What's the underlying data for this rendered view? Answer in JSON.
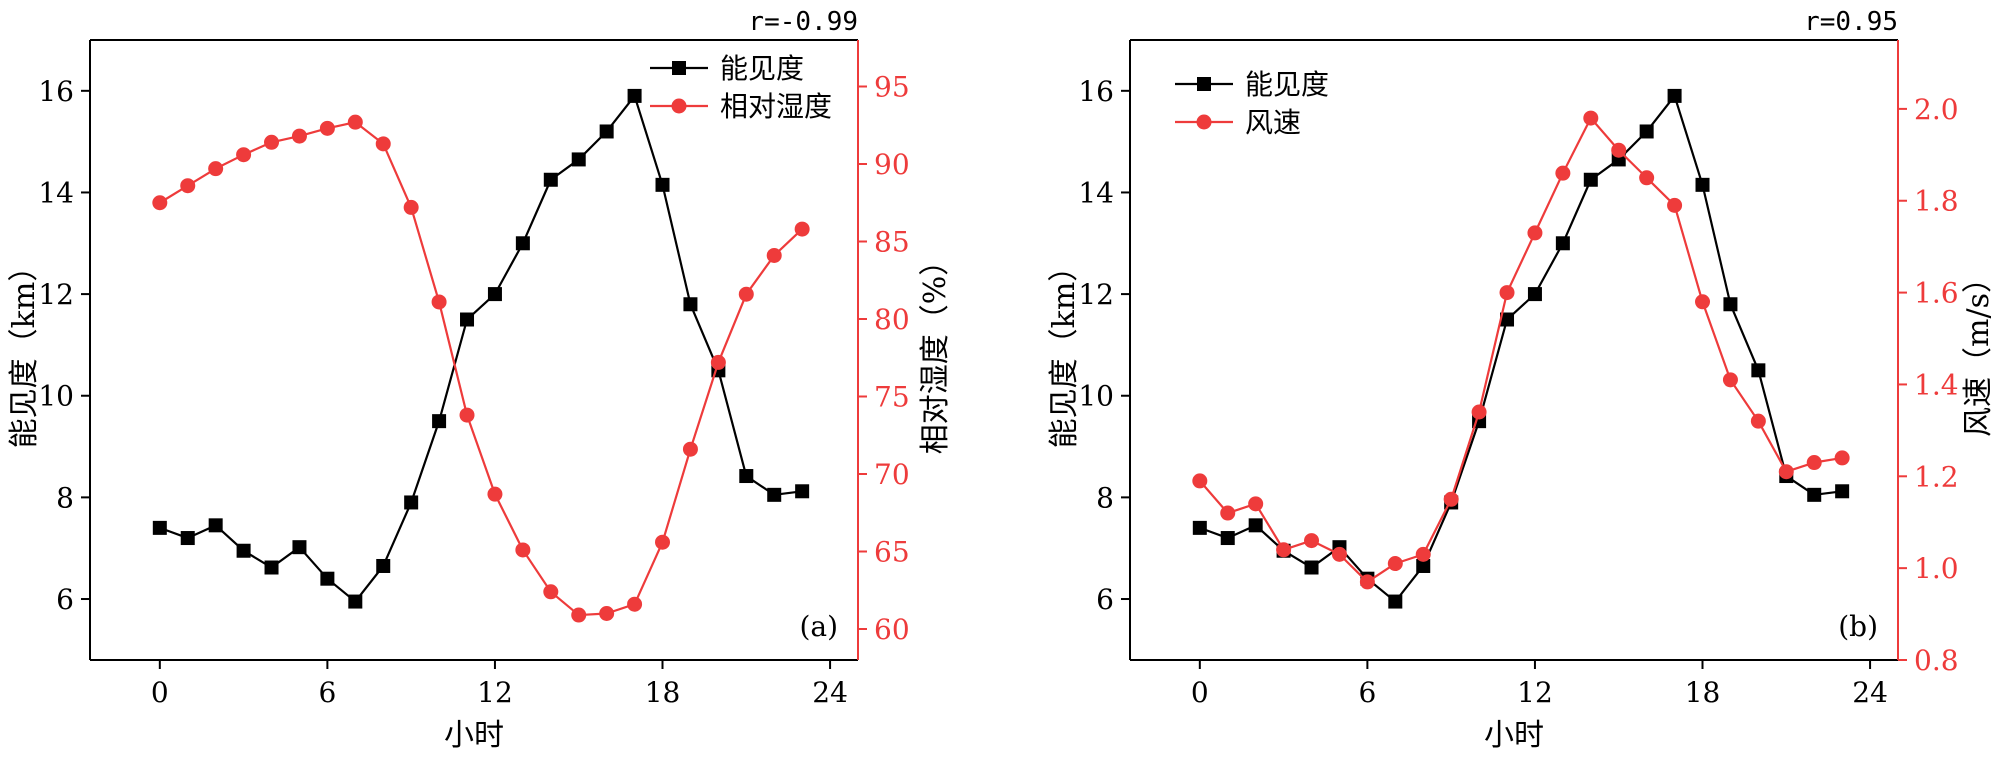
{
  "colors": {
    "visibility": "#000000",
    "secondary": "#ee3b3b",
    "axis": "#000000"
  },
  "chart_data": [
    {
      "type": "line",
      "panel_label": "(a)",
      "correlation": "r=-0.99",
      "xlabel": "小时",
      "ylabel_left": "能见度（km）",
      "ylabel_right": "相对湿度（%）",
      "xlim": [
        -2.5,
        25
      ],
      "xticks": [
        0,
        6,
        12,
        18,
        24
      ],
      "xtick_labels": [
        "0",
        "6",
        "12",
        "18",
        "24"
      ],
      "ylim_left": [
        4.8,
        17
      ],
      "yticks_left": [
        6,
        8,
        10,
        12,
        14,
        16
      ],
      "ytick_labels_left": [
        "6",
        "8",
        "10",
        "12",
        "14",
        "16"
      ],
      "ylim_right": [
        58,
        98
      ],
      "yticks_right": [
        60,
        65,
        70,
        75,
        80,
        85,
        90,
        95
      ],
      "ytick_labels_right": [
        "60",
        "65",
        "70",
        "75",
        "80",
        "85",
        "90",
        "95"
      ],
      "legend_position": "top-right",
      "x": [
        0,
        1,
        2,
        3,
        4,
        5,
        6,
        7,
        8,
        9,
        10,
        11,
        12,
        13,
        14,
        15,
        16,
        17,
        18,
        19,
        20,
        21,
        22,
        23
      ],
      "series": [
        {
          "name": "能见度",
          "axis": "left",
          "marker": "square",
          "color": "#000000",
          "values": [
            7.4,
            7.2,
            7.45,
            6.95,
            6.62,
            7.02,
            6.4,
            5.95,
            6.65,
            7.9,
            9.5,
            11.5,
            12.0,
            13.0,
            14.25,
            14.65,
            15.2,
            15.9,
            14.15,
            11.8,
            10.5,
            8.42,
            8.05,
            8.12
          ]
        },
        {
          "name": "相对湿度",
          "axis": "right",
          "marker": "circle",
          "color": "#ee3b3b",
          "values": [
            87.5,
            88.6,
            89.7,
            90.6,
            91.4,
            91.8,
            92.3,
            92.7,
            91.3,
            87.2,
            81.1,
            73.8,
            68.7,
            65.1,
            62.4,
            60.9,
            61.0,
            61.6,
            65.6,
            71.6,
            77.2,
            81.6,
            84.1,
            85.8
          ]
        }
      ]
    },
    {
      "type": "line",
      "panel_label": "(b)",
      "correlation": "r=0.95",
      "xlabel": "小时",
      "ylabel_left": "能见度（km）",
      "ylabel_right": "风速（m/s）",
      "xlim": [
        -2.5,
        25
      ],
      "xticks": [
        0,
        6,
        12,
        18,
        24
      ],
      "xtick_labels": [
        "0",
        "6",
        "12",
        "18",
        "24"
      ],
      "ylim_left": [
        4.8,
        17
      ],
      "yticks_left": [
        6,
        8,
        10,
        12,
        14,
        16
      ],
      "ytick_labels_left": [
        "6",
        "8",
        "10",
        "12",
        "14",
        "16"
      ],
      "ylim_right": [
        0.8,
        2.15
      ],
      "yticks_right": [
        0.8,
        1.0,
        1.2,
        1.4,
        1.6,
        1.8,
        2.0
      ],
      "ytick_labels_right": [
        "0.8",
        "1.0",
        "1.2",
        "1.4",
        "1.6",
        "1.8",
        "2.0"
      ],
      "legend_position": "top-left",
      "x": [
        0,
        1,
        2,
        3,
        4,
        5,
        6,
        7,
        8,
        9,
        10,
        11,
        12,
        13,
        14,
        15,
        16,
        17,
        18,
        19,
        20,
        21,
        22,
        23
      ],
      "series": [
        {
          "name": "能见度",
          "axis": "left",
          "marker": "square",
          "color": "#000000",
          "values": [
            7.4,
            7.2,
            7.45,
            6.95,
            6.62,
            7.02,
            6.4,
            5.95,
            6.65,
            7.9,
            9.5,
            11.5,
            12.0,
            13.0,
            14.25,
            14.65,
            15.2,
            15.9,
            14.15,
            11.8,
            10.5,
            8.42,
            8.05,
            8.12
          ]
        },
        {
          "name": "风速",
          "axis": "right",
          "marker": "circle",
          "color": "#ee3b3b",
          "values": [
            1.19,
            1.12,
            1.14,
            1.04,
            1.06,
            1.03,
            0.97,
            1.01,
            1.03,
            1.15,
            1.34,
            1.6,
            1.73,
            1.86,
            1.98,
            1.91,
            1.85,
            1.79,
            1.58,
            1.41,
            1.32,
            1.21,
            1.23,
            1.24
          ]
        }
      ]
    }
  ]
}
